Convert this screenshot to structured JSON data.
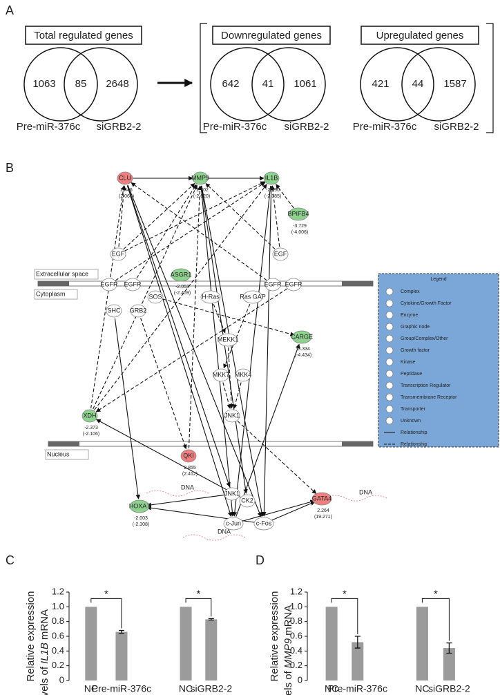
{
  "panels": {
    "a": "A",
    "b": "B",
    "c": "C",
    "d": "D"
  },
  "venn": [
    {
      "title": "Total regulated genes",
      "left": 1063,
      "both": 85,
      "right": 2648,
      "left_label": "Pre-miR-376c",
      "right_label": "siGRB2-2"
    },
    {
      "title": "Downregulated genes",
      "left": 642,
      "both": 41,
      "right": 1061,
      "left_label": "Pre-miR-376c",
      "right_label": "siGRB2-2"
    },
    {
      "title": "Upregulated genes",
      "left": 421,
      "both": 44,
      "right": 1587,
      "left_label": "Pre-miR-376c",
      "right_label": "siGRB2-2"
    }
  ],
  "network": {
    "compartments": [
      "Extracellular space",
      "Cytoplasm",
      "Nucleus"
    ],
    "nodes": [
      {
        "label": "CLU",
        "color": "#f08080",
        "value": "2.446",
        "value2": "(2.060)"
      },
      {
        "label": "MMP9",
        "color": "#8fd18f",
        "value": "-2.202",
        "value2": "(-2.620)"
      },
      {
        "label": "IL1B",
        "color": "#8fd18f",
        "value": "-2.590",
        "value2": "(-2.385)"
      },
      {
        "label": "BPIFB4",
        "color": "#8fd18f",
        "value": "-3.729",
        "value2": "(-4.006)"
      },
      {
        "label": "EGF",
        "color": "#ffffff"
      },
      {
        "label": "EGF",
        "color": "#ffffff"
      },
      {
        "label": "ASGR1",
        "color": "#8fd18f",
        "value": "-2.053",
        "value2": "(-2.459)"
      },
      {
        "label": "EGFR",
        "color": "#ffffff"
      },
      {
        "label": "EGFR",
        "color": "#ffffff"
      },
      {
        "label": "EGFR",
        "color": "#ffffff"
      },
      {
        "label": "EGFR",
        "color": "#ffffff"
      },
      {
        "label": "SHC",
        "color": "#ffffff"
      },
      {
        "label": "GRB2",
        "color": "#ffffff"
      },
      {
        "label": "SOS",
        "color": "#ffffff"
      },
      {
        "label": "H-Ras",
        "color": "#ffffff"
      },
      {
        "label": "Ras GAP",
        "color": "#ffffff"
      },
      {
        "label": "CARGE",
        "color": "#8fd18f",
        "value": "-3.334",
        "value2": "(-4.434)"
      },
      {
        "label": "MEKK1",
        "color": "#ffffff"
      },
      {
        "label": "MKK7",
        "color": "#ffffff"
      },
      {
        "label": "MKK4",
        "color": "#ffffff"
      },
      {
        "label": "JNK1",
        "color": "#ffffff"
      },
      {
        "label": "XDH",
        "color": "#8fd18f",
        "value": "-2.373",
        "value2": "(-2.106)"
      },
      {
        "label": "QKI",
        "color": "#f08080",
        "value": "2.855",
        "value2": "(2.412)"
      },
      {
        "label": "JNK1",
        "color": "#ffffff"
      },
      {
        "label": "HOXA7",
        "color": "#8fd18f",
        "value": "-2.003",
        "value2": "(-2.308)"
      },
      {
        "label": "CK2",
        "color": "#ffffff"
      },
      {
        "label": "GATA4",
        "color": "#f08080",
        "value": "2.264",
        "value2": "(19.271)"
      },
      {
        "label": "c-Jun",
        "color": "#ffffff"
      },
      {
        "label": "c-Fos",
        "color": "#ffffff"
      }
    ],
    "dna": [
      "DNA",
      "DNA",
      "DNA"
    ],
    "legend": {
      "title": "Legend",
      "items": [
        "Complex",
        "Cytokine/Growth Factor",
        "Enzyme",
        "Graphic node",
        "Group/Complex/Other",
        "Growth factor",
        "Kinase",
        "Peptidase",
        "Transcription Regulator",
        "Transmembrane Receptor",
        "Transporter",
        "Unknown",
        "Relationship",
        "Relationship"
      ]
    }
  },
  "chart_data": [
    {
      "type": "bar",
      "categories": [
        "NC",
        "Pre-miR-376c",
        "NC",
        "siGRB2-2"
      ],
      "values": [
        1,
        0.66,
        1,
        0.83
      ],
      "errors": [
        null,
        0.02,
        null,
        0.01
      ],
      "color": "#9b9b9b",
      "ylim": [
        0,
        1.2
      ],
      "yticks": [
        0,
        0.2,
        0.4,
        0.6,
        0.8,
        {
          "value": 1,
          "label": "1.0"
        },
        1.2
      ],
      "ylabel": {
        "line1": "Relative expression",
        "line2": "levels of",
        "gene": "IL1B",
        "tail": "mRNA"
      },
      "annotations": [
        "*",
        "*"
      ]
    },
    {
      "type": "bar",
      "categories": [
        "NC",
        "Pre-miR-376c",
        "NC",
        "siGRB2-2"
      ],
      "values": [
        1,
        0.52,
        1,
        0.44
      ],
      "errors": [
        null,
        0.08,
        null,
        0.07
      ],
      "color": "#9b9b9b",
      "ylim": [
        0,
        1.2
      ],
      "yticks": [
        0,
        0.2,
        0.4,
        0.6,
        0.8,
        {
          "value": 1,
          "label": "1.0"
        },
        1.2
      ],
      "ylabel": {
        "line1": "Relative expression",
        "line2": "levels of",
        "gene": "MMP9",
        "tail": "mRNA"
      },
      "annotations": [
        "*",
        "*"
      ]
    }
  ]
}
